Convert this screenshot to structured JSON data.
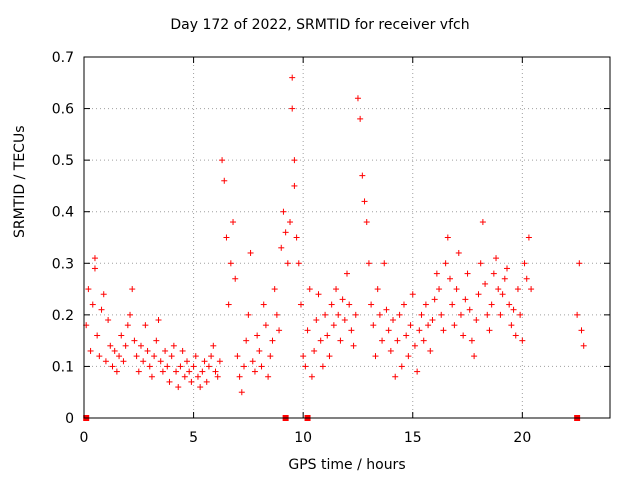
{
  "chart_data": {
    "type": "scatter",
    "title": "Day 172 of 2022, SRMTID for receiver vfch",
    "xlabel": "GPS time / hours",
    "ylabel": "SRMTID / TECUs",
    "xlim": [
      0,
      24
    ],
    "ylim": [
      0,
      0.7
    ],
    "xticks": [
      0,
      5,
      10,
      15,
      20
    ],
    "yticks": [
      0,
      0.1,
      0.2,
      0.3,
      0.4,
      0.5,
      0.6,
      0.7
    ],
    "grid": true,
    "marker": "+",
    "color": "#ff0000",
    "gap_markers_x": [
      0.1,
      9.2,
      10.2,
      22.5
    ],
    "series": [
      {
        "name": "SRMTID",
        "x": [
          0.1,
          0.2,
          0.3,
          0.4,
          0.5,
          0.5,
          0.6,
          0.7,
          0.8,
          0.9,
          1.0,
          1.1,
          1.2,
          1.3,
          1.4,
          1.5,
          1.6,
          1.7,
          1.8,
          1.9,
          2.0,
          2.1,
          2.2,
          2.3,
          2.4,
          2.5,
          2.6,
          2.7,
          2.8,
          2.9,
          3.0,
          3.1,
          3.2,
          3.3,
          3.4,
          3.5,
          3.6,
          3.7,
          3.8,
          3.9,
          4.0,
          4.1,
          4.2,
          4.3,
          4.4,
          4.5,
          4.6,
          4.7,
          4.8,
          4.9,
          5.0,
          5.1,
          5.2,
          5.3,
          5.4,
          5.5,
          5.6,
          5.7,
          5.8,
          5.9,
          6.0,
          6.1,
          6.2,
          6.3,
          6.4,
          6.5,
          6.6,
          6.7,
          6.8,
          6.9,
          7.0,
          7.1,
          7.2,
          7.3,
          7.4,
          7.5,
          7.6,
          7.7,
          7.8,
          7.9,
          8.0,
          8.1,
          8.2,
          8.3,
          8.4,
          8.5,
          8.6,
          8.7,
          8.8,
          8.9,
          9.0,
          9.1,
          9.2,
          9.3,
          9.4,
          9.5,
          9.5,
          9.6,
          9.6,
          9.7,
          9.8,
          9.9,
          10.0,
          10.1,
          10.2,
          10.3,
          10.4,
          10.5,
          10.6,
          10.7,
          10.8,
          10.9,
          11.0,
          11.1,
          11.2,
          11.3,
          11.4,
          11.5,
          11.6,
          11.7,
          11.8,
          11.9,
          12.0,
          12.1,
          12.2,
          12.3,
          12.4,
          12.5,
          12.6,
          12.7,
          12.8,
          12.9,
          13.0,
          13.1,
          13.2,
          13.3,
          13.4,
          13.5,
          13.6,
          13.7,
          13.8,
          13.9,
          14.0,
          14.1,
          14.2,
          14.3,
          14.4,
          14.5,
          14.6,
          14.7,
          14.8,
          14.9,
          15.0,
          15.1,
          15.2,
          15.3,
          15.4,
          15.5,
          15.6,
          15.7,
          15.8,
          15.9,
          16.0,
          16.1,
          16.2,
          16.3,
          16.4,
          16.5,
          16.6,
          16.7,
          16.8,
          16.9,
          17.0,
          17.1,
          17.2,
          17.3,
          17.4,
          17.5,
          17.6,
          17.7,
          17.8,
          17.9,
          18.0,
          18.1,
          18.2,
          18.3,
          18.4,
          18.5,
          18.6,
          18.7,
          18.8,
          18.9,
          19.0,
          19.1,
          19.2,
          19.3,
          19.4,
          19.5,
          19.6,
          19.7,
          19.8,
          19.9,
          20.0,
          20.1,
          20.2,
          20.3,
          20.4,
          22.5,
          22.6,
          22.7,
          22.8
        ],
        "y": [
          0.18,
          0.25,
          0.13,
          0.22,
          0.31,
          0.29,
          0.16,
          0.12,
          0.21,
          0.24,
          0.11,
          0.19,
          0.14,
          0.1,
          0.13,
          0.09,
          0.12,
          0.16,
          0.11,
          0.14,
          0.18,
          0.2,
          0.25,
          0.15,
          0.12,
          0.09,
          0.14,
          0.11,
          0.18,
          0.13,
          0.1,
          0.08,
          0.12,
          0.15,
          0.19,
          0.11,
          0.09,
          0.13,
          0.1,
          0.07,
          0.12,
          0.14,
          0.09,
          0.06,
          0.1,
          0.13,
          0.08,
          0.11,
          0.09,
          0.07,
          0.1,
          0.12,
          0.08,
          0.06,
          0.09,
          0.11,
          0.07,
          0.1,
          0.12,
          0.14,
          0.09,
          0.08,
          0.11,
          0.5,
          0.46,
          0.35,
          0.22,
          0.3,
          0.38,
          0.27,
          0.12,
          0.08,
          0.05,
          0.1,
          0.15,
          0.2,
          0.32,
          0.11,
          0.09,
          0.16,
          0.13,
          0.1,
          0.22,
          0.18,
          0.08,
          0.12,
          0.15,
          0.25,
          0.2,
          0.17,
          0.33,
          0.4,
          0.36,
          0.3,
          0.38,
          0.66,
          0.6,
          0.5,
          0.45,
          0.35,
          0.3,
          0.22,
          0.12,
          0.1,
          0.17,
          0.25,
          0.08,
          0.13,
          0.19,
          0.24,
          0.15,
          0.1,
          0.2,
          0.16,
          0.12,
          0.22,
          0.18,
          0.25,
          0.2,
          0.15,
          0.23,
          0.19,
          0.28,
          0.22,
          0.17,
          0.14,
          0.2,
          0.62,
          0.58,
          0.47,
          0.42,
          0.38,
          0.3,
          0.22,
          0.18,
          0.12,
          0.25,
          0.2,
          0.15,
          0.3,
          0.21,
          0.17,
          0.13,
          0.19,
          0.08,
          0.15,
          0.2,
          0.1,
          0.22,
          0.16,
          0.12,
          0.18,
          0.24,
          0.14,
          0.09,
          0.17,
          0.2,
          0.15,
          0.22,
          0.18,
          0.13,
          0.19,
          0.23,
          0.28,
          0.25,
          0.2,
          0.17,
          0.3,
          0.35,
          0.27,
          0.22,
          0.18,
          0.25,
          0.32,
          0.2,
          0.16,
          0.23,
          0.28,
          0.21,
          0.15,
          0.12,
          0.19,
          0.24,
          0.3,
          0.38,
          0.26,
          0.2,
          0.17,
          0.22,
          0.28,
          0.31,
          0.25,
          0.2,
          0.24,
          0.27,
          0.29,
          0.22,
          0.18,
          0.21,
          0.16,
          0.25,
          0.2,
          0.15,
          0.3,
          0.27,
          0.35,
          0.25,
          0.2,
          0.3,
          0.17,
          0.14
        ]
      }
    ]
  }
}
